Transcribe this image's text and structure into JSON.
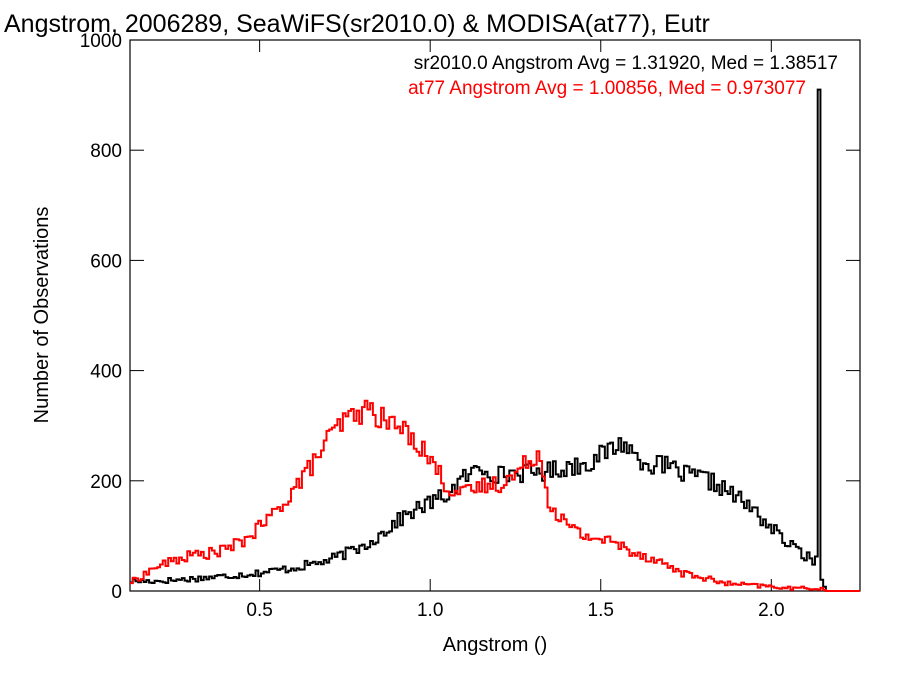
{
  "chart_data": {
    "type": "line",
    "title": "Angstrom, 2006289, SeaWiFS(sr2010.0) & MODISA(at77), Eutr",
    "xlabel": "Angstrom ()",
    "ylabel": "Number of Observations",
    "xlim": [
      0.12,
      2.26
    ],
    "ylim": [
      0,
      1000
    ],
    "xticks": [
      0.5,
      1.0,
      1.5,
      2.0
    ],
    "xtick_labels": [
      "0.5",
      "1.0",
      "1.5",
      "2.0"
    ],
    "yticks": [
      0,
      200,
      400,
      600,
      800,
      1000
    ],
    "ytick_labels": [
      "0",
      "200",
      "400",
      "600",
      "800",
      "1000"
    ],
    "grid": false,
    "legend": "top-right",
    "style": "step histogram",
    "series": [
      {
        "name": "sr2010.0",
        "legend_text": "sr2010.0 Angstrom Avg = 1.31920, Med = 1.38517",
        "color": "#000000",
        "x": [
          0.12,
          0.2,
          0.3,
          0.4,
          0.5,
          0.6,
          0.7,
          0.8,
          0.85,
          0.9,
          0.95,
          1.0,
          1.05,
          1.1,
          1.15,
          1.2,
          1.25,
          1.3,
          1.35,
          1.4,
          1.45,
          1.5,
          1.55,
          1.57,
          1.6,
          1.65,
          1.7,
          1.75,
          1.8,
          1.85,
          1.9,
          1.95,
          2.0,
          2.05,
          2.1,
          2.12,
          2.13,
          2.135,
          2.14,
          2.145,
          2.15,
          2.16,
          2.2,
          2.26
        ],
        "y": [
          18,
          18,
          22,
          27,
          33,
          42,
          55,
          80,
          100,
          125,
          145,
          160,
          175,
          205,
          225,
          210,
          215,
          215,
          218,
          225,
          230,
          245,
          265,
          270,
          245,
          230,
          225,
          210,
          205,
          190,
          170,
          145,
          115,
          85,
          65,
          55,
          45,
          80,
          910,
          40,
          15,
          0,
          0,
          0
        ]
      },
      {
        "name": "at77",
        "legend_text": "at77 Angstrom Avg = 1.00856, Med = 0.973077",
        "color": "#ff0000",
        "x": [
          0.12,
          0.15,
          0.2,
          0.25,
          0.3,
          0.35,
          0.4,
          0.45,
          0.5,
          0.55,
          0.6,
          0.65,
          0.7,
          0.75,
          0.8,
          0.83,
          0.85,
          0.9,
          0.95,
          1.0,
          1.05,
          1.1,
          1.15,
          1.2,
          1.25,
          1.3,
          1.32,
          1.35,
          1.4,
          1.45,
          1.5,
          1.55,
          1.6,
          1.65,
          1.7,
          1.75,
          1.8,
          1.85,
          1.9,
          1.95,
          2.0,
          2.05,
          2.1,
          2.15,
          2.16,
          2.2,
          2.26
        ],
        "y": [
          15,
          25,
          45,
          55,
          65,
          68,
          75,
          90,
          115,
          145,
          185,
          225,
          275,
          310,
          325,
          330,
          315,
          300,
          280,
          240,
          190,
          175,
          190,
          195,
          210,
          245,
          250,
          160,
          120,
          100,
          95,
          85,
          70,
          60,
          45,
          30,
          25,
          15,
          12,
          10,
          8,
          5,
          5,
          5,
          0,
          0,
          0
        ]
      }
    ]
  }
}
